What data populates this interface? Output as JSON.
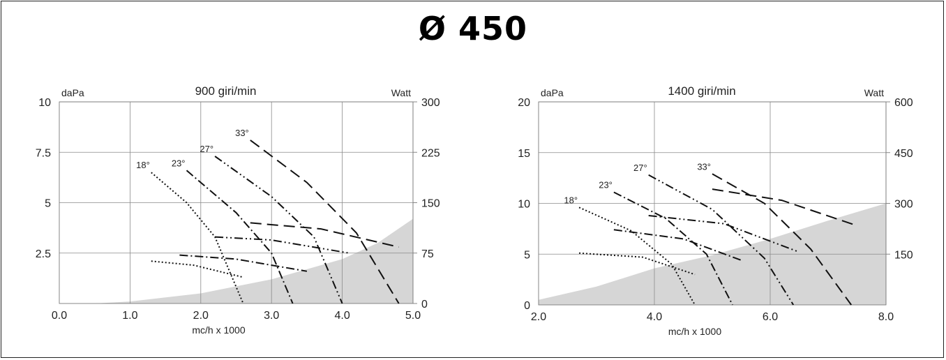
{
  "page": {
    "title": "Ø 450"
  },
  "chart_data": [
    {
      "type": "line",
      "title": "900 giri/min",
      "xlabel": "mc/h x 1000",
      "ylabel_left": "daPa",
      "ylabel_right": "Watt",
      "xlim": [
        0.0,
        5.0
      ],
      "ylim": [
        0,
        10
      ],
      "y2lim": [
        0,
        300
      ],
      "grid": true,
      "x_ticks": [
        "0.0",
        "1.0",
        "2.0",
        "3.0",
        "4.0",
        "5.0"
      ],
      "x_tick_values": [
        0,
        1,
        2,
        3,
        4,
        5
      ],
      "y_ticks": [
        "10",
        "7.5",
        "5",
        "2.5"
      ],
      "y_tick_values": [
        10,
        7.5,
        5,
        2.5
      ],
      "y2_ticks": [
        "300",
        "225",
        "150",
        "75",
        "0"
      ],
      "y2_tick_values": [
        300,
        225,
        150,
        75,
        0
      ],
      "shaded_region": [
        [
          0.5,
          0
        ],
        [
          1.0,
          0.1
        ],
        [
          2.0,
          0.5
        ],
        [
          3.0,
          1.2
        ],
        [
          4.0,
          2.2
        ],
        [
          4.5,
          3.0
        ],
        [
          5.0,
          4.2
        ],
        [
          5.0,
          0
        ]
      ],
      "series": [
        {
          "name": "18°",
          "dash": "2,3",
          "pressure": [
            [
              1.3,
              6.5
            ],
            [
              1.8,
              5.0
            ],
            [
              2.2,
              3.3
            ],
            [
              2.6,
              0
            ]
          ],
          "power": [
            [
              1.3,
              2.1
            ],
            [
              1.9,
              1.9
            ],
            [
              2.6,
              1.3
            ]
          ]
        },
        {
          "name": "23°",
          "dash": "12,4,2,4",
          "pressure": [
            [
              1.8,
              6.6
            ],
            [
              2.5,
              4.5
            ],
            [
              3.0,
              2.5
            ],
            [
              3.3,
              0
            ]
          ],
          "power": [
            [
              1.7,
              2.4
            ],
            [
              2.5,
              2.2
            ],
            [
              3.5,
              1.6
            ]
          ]
        },
        {
          "name": "27°",
          "dash": "12,4,2,4,2,4",
          "pressure": [
            [
              2.2,
              7.3
            ],
            [
              3.0,
              5.3
            ],
            [
              3.6,
              3.3
            ],
            [
              4.0,
              0
            ]
          ],
          "power": [
            [
              2.2,
              3.3
            ],
            [
              3.0,
              3.15
            ],
            [
              4.1,
              2.5
            ]
          ]
        },
        {
          "name": "33°",
          "dash": "16,8",
          "pressure": [
            [
              2.7,
              8.1
            ],
            [
              3.5,
              6.0
            ],
            [
              4.2,
              3.5
            ],
            [
              4.8,
              0
            ]
          ],
          "power": [
            [
              2.7,
              4.0
            ],
            [
              3.7,
              3.7
            ],
            [
              4.8,
              2.8
            ]
          ]
        }
      ]
    },
    {
      "type": "line",
      "title": "1400 giri/min",
      "xlabel": "mc/h x 1000",
      "ylabel_left": "daPa",
      "ylabel_right": "Watt",
      "xlim": [
        2.0,
        8.0
      ],
      "ylim": [
        0,
        20
      ],
      "y2lim": [
        0,
        600
      ],
      "grid": true,
      "x_ticks": [
        "2.0",
        "4.0",
        "6.0",
        "8.0"
      ],
      "x_tick_values": [
        2,
        4,
        6,
        8
      ],
      "y_ticks": [
        "20",
        "15",
        "10",
        "5",
        "0"
      ],
      "y_tick_values": [
        20,
        15,
        10,
        5,
        0
      ],
      "y2_ticks": [
        "600",
        "450",
        "300",
        "150"
      ],
      "y2_tick_values": [
        600,
        450,
        300,
        150
      ],
      "shaded_region": [
        [
          2.0,
          0
        ],
        [
          2.0,
          0.5
        ],
        [
          3.0,
          1.8
        ],
        [
          4.0,
          3.6
        ],
        [
          5.0,
          4.9
        ],
        [
          6.0,
          6.5
        ],
        [
          7.0,
          8.3
        ],
        [
          8.0,
          10.0
        ],
        [
          8.0,
          0
        ]
      ],
      "series": [
        {
          "name": "18°",
          "dash": "2,3",
          "pressure": [
            [
              2.7,
              9.6
            ],
            [
              3.6,
              7.3
            ],
            [
              4.3,
              4.0
            ],
            [
              4.7,
              0
            ]
          ],
          "power": [
            [
              2.7,
              5.1
            ],
            [
              3.8,
              4.7
            ],
            [
              4.7,
              3.0
            ]
          ]
        },
        {
          "name": "23°",
          "dash": "12,4,2,4",
          "pressure": [
            [
              3.3,
              11.1
            ],
            [
              4.2,
              8.5
            ],
            [
              4.9,
              5.0
            ],
            [
              5.35,
              0
            ]
          ],
          "power": [
            [
              3.3,
              7.4
            ],
            [
              4.5,
              6.5
            ],
            [
              5.5,
              4.4
            ]
          ]
        },
        {
          "name": "27°",
          "dash": "12,4,2,4,2,4",
          "pressure": [
            [
              3.9,
              12.8
            ],
            [
              5.0,
              9.4
            ],
            [
              5.9,
              4.6
            ],
            [
              6.4,
              0
            ]
          ],
          "power": [
            [
              3.9,
              8.8
            ],
            [
              5.2,
              8.0
            ],
            [
              6.5,
              5.2
            ]
          ]
        },
        {
          "name": "33°",
          "dash": "16,8",
          "pressure": [
            [
              5.0,
              12.9
            ],
            [
              5.9,
              10.0
            ],
            [
              6.7,
              5.5
            ],
            [
              7.4,
              0
            ]
          ],
          "power": [
            [
              5.0,
              11.4
            ],
            [
              6.2,
              10.3
            ],
            [
              7.5,
              7.8
            ]
          ]
        }
      ]
    }
  ]
}
